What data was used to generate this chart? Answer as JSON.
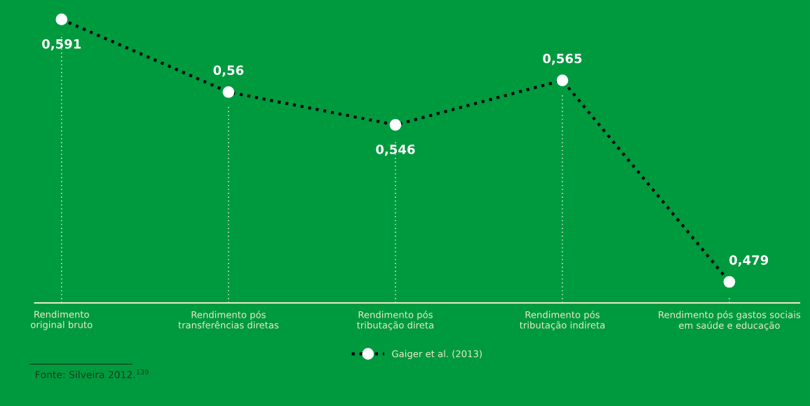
{
  "chart_data": {
    "type": "line",
    "categories": [
      "Rendimento\noriginal bruto",
      "Rendimento pós\ntransferências diretas",
      "Rendimento pós\ntributação direta",
      "Rendimento pós\ntributação indireta",
      "Rendimento pós gastos sociais\nem saúde e educação"
    ],
    "series": [
      {
        "name": "Gaiger et al. (2013)",
        "color": "#000000",
        "values": [
          0.591,
          0.56,
          0.546,
          0.565,
          0.479
        ],
        "value_labels": [
          "0,591",
          "0,56",
          "0,546",
          "0,565",
          "0,479"
        ]
      }
    ],
    "marker": "circle",
    "line_style": "dotted",
    "legend": "bottom",
    "grid": "x",
    "annotations": [
      "Fonte: Silveira 2012.$^{139}$"
    ]
  }
}
